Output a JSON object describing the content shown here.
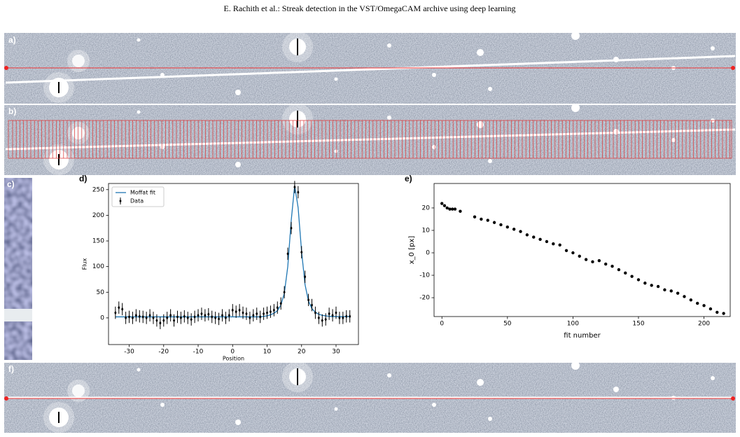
{
  "header": "E. Rachith et al.: Streak detection in the VST/OmegaCAM archive using deep learning",
  "panels": [
    "a)",
    "b)",
    "c)",
    "f)"
  ],
  "chart_data": [
    {
      "type": "line",
      "label": "d)",
      "xlabel": "Position",
      "ylabel": "Flux",
      "x": [
        -34,
        -33,
        -32,
        -31,
        -30,
        -29,
        -28,
        -27,
        -26,
        -25,
        -24,
        -23,
        -22,
        -21,
        -20,
        -19,
        -18,
        -17,
        -16,
        -15,
        -14,
        -13,
        -12,
        -11,
        -10,
        -9,
        -8,
        -7,
        -6,
        -5,
        -4,
        -3,
        -2,
        -1,
        0,
        1,
        2,
        3,
        4,
        5,
        6,
        7,
        8,
        9,
        10,
        11,
        12,
        13,
        14,
        15,
        16,
        17,
        18,
        19,
        20,
        21,
        22,
        23,
        24,
        25,
        26,
        27,
        28,
        29,
        30,
        31,
        32,
        33,
        34
      ],
      "series": [
        {
          "name": "Moffat fit",
          "color": "#1f77b4",
          "style": "line",
          "values": [
            2,
            2,
            2,
            2,
            2,
            2,
            2,
            2,
            2,
            2,
            2,
            2,
            2,
            2,
            2,
            2,
            2,
            2,
            2,
            2,
            2,
            2,
            2,
            2,
            2,
            2,
            2,
            2,
            2,
            2,
            2,
            2,
            2,
            2,
            2,
            2,
            2,
            2,
            2,
            2,
            2,
            2,
            2,
            3,
            4,
            6,
            9,
            14,
            25,
            48,
            100,
            190,
            258,
            215,
            130,
            65,
            33,
            18,
            11,
            7,
            5,
            4,
            3,
            2.5,
            2.5,
            2.5,
            2.5,
            2.5,
            2.5
          ]
        },
        {
          "name": "Data",
          "color": "#000000",
          "style": "errorbar",
          "error": 12,
          "values": [
            10,
            20,
            17,
            0,
            2,
            0,
            5,
            3,
            2,
            0,
            5,
            0,
            -5,
            -10,
            -5,
            0,
            5,
            -5,
            2,
            0,
            3,
            0,
            -3,
            2,
            5,
            8,
            5,
            7,
            2,
            0,
            -2,
            5,
            0,
            5,
            15,
            12,
            15,
            10,
            8,
            0,
            5,
            8,
            2,
            8,
            10,
            12,
            15,
            20,
            28,
            50,
            125,
            175,
            255,
            245,
            128,
            80,
            35,
            25,
            10,
            0,
            -5,
            -3,
            8,
            5,
            10,
            0,
            0,
            3,
            3
          ]
        }
      ],
      "xlim": [
        -36,
        36.5
      ],
      "ylim": [
        -52,
        262
      ],
      "xticks": [
        -30,
        -20,
        -10,
        0,
        10,
        20,
        30
      ],
      "yticks": [
        0,
        50,
        100,
        150,
        200,
        250
      ],
      "legend": "upper left"
    },
    {
      "type": "scatter",
      "label": "e)",
      "xlabel": "fit number",
      "ylabel": "x_0 [px]",
      "color": "#000000",
      "x": [
        0,
        2,
        4,
        6,
        8,
        10,
        14,
        25,
        30,
        35,
        40,
        45,
        50,
        55,
        60,
        65,
        70,
        75,
        80,
        85,
        90,
        95,
        100,
        105,
        110,
        115,
        120,
        125,
        130,
        135,
        140,
        145,
        150,
        155,
        160,
        165,
        170,
        175,
        180,
        185,
        190,
        195,
        200,
        205,
        210,
        215
      ],
      "values": [
        22,
        21,
        20,
        19.5,
        19.5,
        19.5,
        18.5,
        16,
        15,
        14.5,
        13.5,
        12.5,
        11.5,
        10.5,
        9.5,
        8,
        7,
        6,
        5,
        4,
        3.5,
        1,
        0,
        -1.5,
        -3,
        -4,
        -3.5,
        -5,
        -6,
        -7.5,
        -9,
        -10.5,
        -12,
        -13.5,
        -14.5,
        -15,
        -16.5,
        -17,
        -18,
        -19.5,
        -21,
        -22.5,
        -23.5,
        -25,
        -26.5,
        -27
      ],
      "xlim": [
        -6,
        220
      ],
      "ylim": [
        -28.4,
        30.9
      ],
      "xticks": [
        0,
        50,
        100,
        150,
        200
      ],
      "yticks": [
        -20,
        -10,
        0,
        10,
        20
      ]
    }
  ]
}
